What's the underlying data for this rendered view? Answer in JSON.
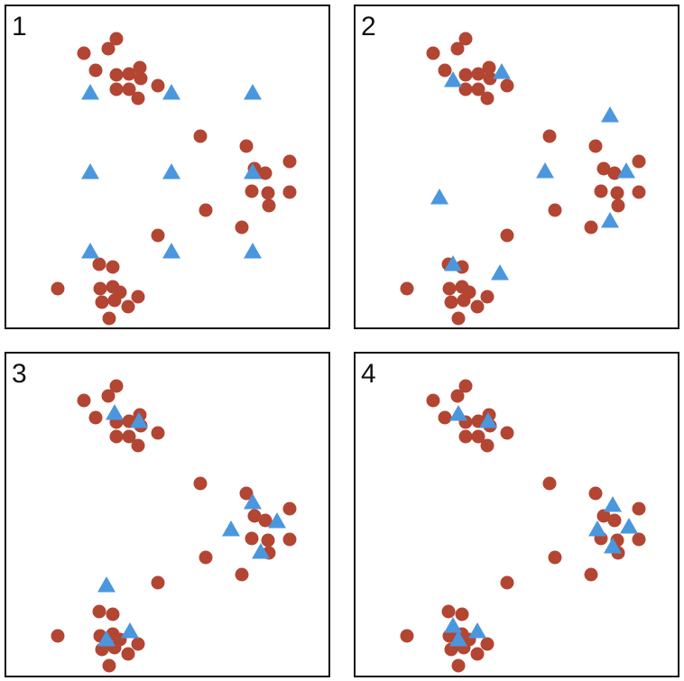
{
  "colors": {
    "point": "#b34533",
    "point_stroke": "#9a3a2b",
    "centroid": "#4b97dd",
    "border": "#111111",
    "label": "#111111"
  },
  "icons": {
    "point": "circle",
    "centroid": "triangle"
  },
  "panels": [
    {
      "label": "1"
    },
    {
      "label": "2"
    },
    {
      "label": "3"
    },
    {
      "label": "4"
    }
  ]
}
